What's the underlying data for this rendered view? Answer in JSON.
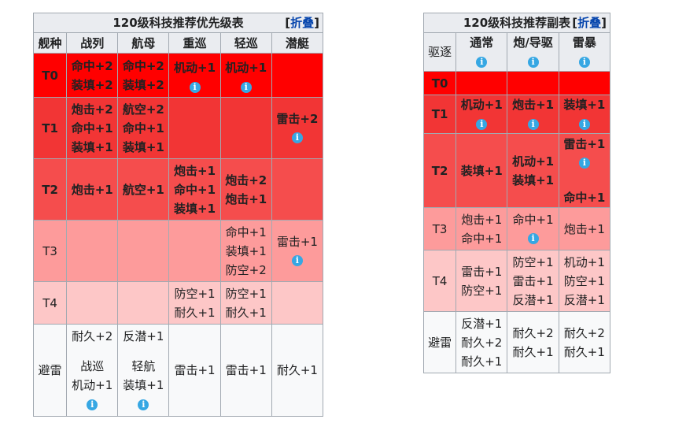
{
  "main": {
    "caption": "120级科技推荐优先级表",
    "collapse": "折叠",
    "headers": [
      "舰种",
      "战列",
      "航母",
      "重巡",
      "轻巡",
      "潜艇"
    ],
    "rows": {
      "t0": {
        "tier": "T0",
        "c1": [
          "命中+2",
          "装填+2"
        ],
        "c2": [
          "命中+2",
          "装填+2"
        ],
        "c3": "机动+1",
        "c4": "机动+1"
      },
      "t1": {
        "tier": "T1",
        "c1": [
          "炮击+2",
          "命中+1",
          "装填+1"
        ],
        "c2": [
          "航空+2",
          "命中+1",
          "装填+1"
        ],
        "c5": "雷击+2"
      },
      "t2": {
        "tier": "T2",
        "c1": "炮击+1",
        "c2": "航空+1",
        "c3": [
          "炮击+1",
          "命中+1",
          "装填+1"
        ],
        "c4": [
          "炮击+2",
          "炮击+1"
        ]
      },
      "t3": {
        "tier": "T3",
        "c4": [
          "命中+1",
          "装填+1",
          "防空+2"
        ],
        "c5": "雷击+1"
      },
      "t4": {
        "tier": "T4",
        "c3": [
          "防空+1",
          "耐久+1"
        ],
        "c4": [
          "防空+1",
          "耐久+1"
        ]
      },
      "evade": {
        "tier": "避雷",
        "c1": [
          "耐久+2",
          "战巡",
          "机动+1"
        ],
        "c2": [
          "反潜+1",
          "轻航",
          "装填+1"
        ],
        "c3": "雷击+1",
        "c4": "雷击+1",
        "c5": "耐久+1"
      }
    }
  },
  "sub": {
    "caption": "120级科技推荐副表",
    "collapse": "折叠",
    "headers": [
      "驱逐",
      "通常",
      "炮/导驱",
      "雷暴"
    ],
    "rows": {
      "t0": {
        "tier": "T0"
      },
      "t1": {
        "tier": "T1",
        "c1": "机动+1",
        "c2": "炮击+1",
        "c3": "装填+1"
      },
      "t2": {
        "tier": "T2",
        "c1": "装填+1",
        "c2": [
          "机动+1",
          "装填+1"
        ],
        "c3": [
          "雷击+1",
          "命中+1"
        ]
      },
      "t3": {
        "tier": "T3",
        "c1": [
          "炮击+1",
          "命中+1"
        ],
        "c2": "命中+1",
        "c3": "炮击+1"
      },
      "t4": {
        "tier": "T4",
        "c1": [
          "雷击+1",
          "防空+1"
        ],
        "c2": [
          "防空+1",
          "雷击+1",
          "反潜+1"
        ],
        "c3": [
          "机动+1",
          "防空+1",
          "反潜+1"
        ]
      },
      "evade": {
        "tier": "避雷",
        "c1": [
          "反潜+1",
          "耐久+2",
          "耐久+1"
        ],
        "c2": [
          "耐久+2",
          "耐久+1"
        ],
        "c3": [
          "耐久+2",
          "耐久+1"
        ]
      }
    }
  },
  "icons": {
    "info": "info-icon",
    "info_glyph": "i"
  },
  "colors": {
    "t0": "#ff0000",
    "t1": "#f23535",
    "t2": "#f54d4d",
    "t3": "#fd9b9b",
    "t4": "#fdc7c7",
    "evade": "#f8f9fa",
    "link": "#0645ad",
    "info": "#36a7e3"
  }
}
